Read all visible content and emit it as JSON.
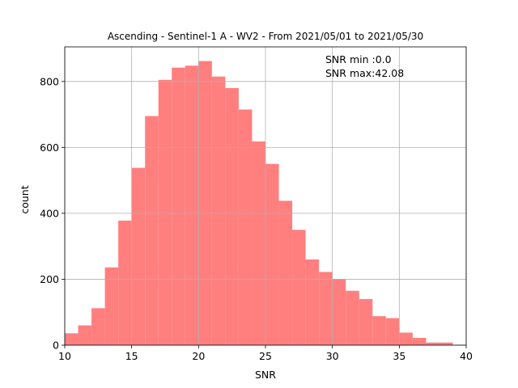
{
  "chart_data": {
    "type": "bar",
    "title": "Ascending - Sentinel-1 A - WV2 - From 2021/05/01 to 2021/05/30",
    "xlabel": "SNR",
    "ylabel": "count",
    "xlim": [
      10,
      40
    ],
    "ylim": [
      0,
      905
    ],
    "xticks": [
      10,
      15,
      20,
      25,
      30,
      35,
      40
    ],
    "yticks": [
      0,
      200,
      400,
      600,
      800
    ],
    "grid": true,
    "bar_color": "#ff7f7f",
    "bins": [
      [
        10,
        11
      ],
      [
        11,
        12
      ],
      [
        12,
        13
      ],
      [
        13,
        14
      ],
      [
        14,
        15
      ],
      [
        15,
        16
      ],
      [
        16,
        17
      ],
      [
        17,
        18
      ],
      [
        18,
        19
      ],
      [
        19,
        20
      ],
      [
        20,
        21
      ],
      [
        21,
        22
      ],
      [
        22,
        23
      ],
      [
        23,
        24
      ],
      [
        24,
        25
      ],
      [
        25,
        26
      ],
      [
        26,
        27
      ],
      [
        27,
        28
      ],
      [
        28,
        29
      ],
      [
        29,
        30
      ],
      [
        30,
        31
      ],
      [
        31,
        32
      ],
      [
        32,
        33
      ],
      [
        33,
        34
      ],
      [
        34,
        35
      ],
      [
        35,
        36
      ],
      [
        36,
        37
      ],
      [
        37,
        38
      ],
      [
        38,
        39
      ],
      [
        39,
        40
      ]
    ],
    "values": [
      36,
      60,
      112,
      236,
      378,
      538,
      695,
      805,
      842,
      848,
      862,
      815,
      780,
      715,
      618,
      550,
      438,
      350,
      260,
      222,
      200,
      165,
      140,
      88,
      82,
      38,
      22,
      8,
      8,
      1
    ],
    "annotations": [
      "SNR min :0.0",
      "SNR max:42.08"
    ]
  }
}
